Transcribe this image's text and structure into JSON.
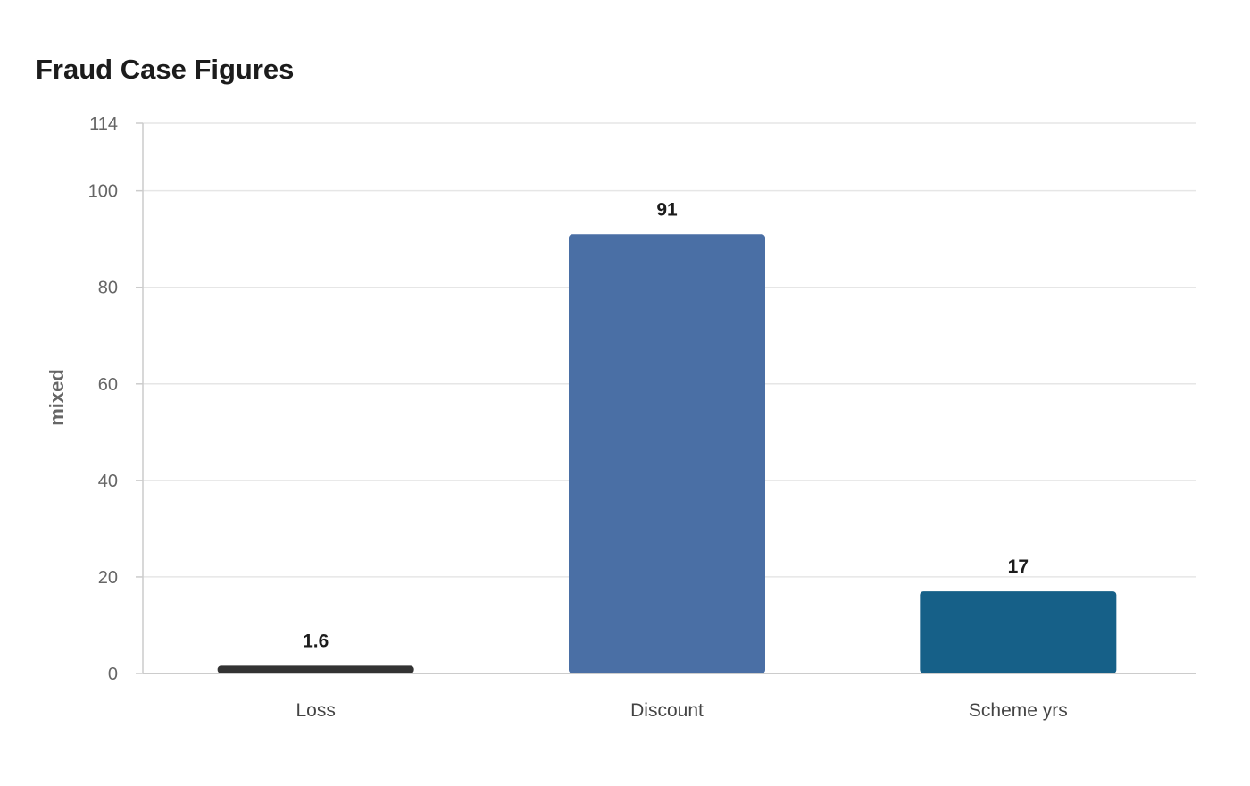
{
  "chart_data": {
    "type": "bar",
    "title": "Fraud Case Figures",
    "xlabel": "",
    "ylabel": "mixed",
    "categories": [
      "Loss",
      "Discount",
      "Scheme yrs"
    ],
    "values": [
      1.6,
      91,
      17
    ],
    "value_labels": [
      "1.6",
      "91",
      "17"
    ],
    "colors": [
      "#333333",
      "#4a6fa5",
      "#166088"
    ],
    "ylim": [
      0,
      114
    ],
    "yticks": [
      0,
      20,
      40,
      60,
      80,
      100,
      114
    ],
    "grid": true,
    "legend": "none"
  }
}
